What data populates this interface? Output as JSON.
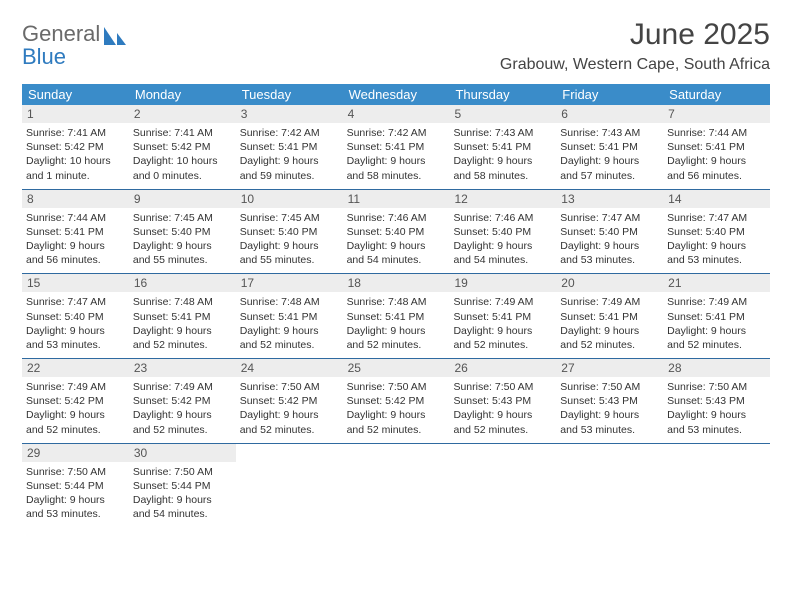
{
  "logo": {
    "general": "General",
    "blue": "Blue"
  },
  "title": "June 2025",
  "subtitle": "Grabouw, Western Cape, South Africa",
  "colors": {
    "header_bg": "#3a8cc9",
    "week_divider": "#2f6aa0",
    "daynum_bg": "#ededed",
    "text": "#333333",
    "logo_gray": "#6a6a6a",
    "logo_blue": "#2f7bbf",
    "page_bg": "#ffffff"
  },
  "weekdays": [
    "Sunday",
    "Monday",
    "Tuesday",
    "Wednesday",
    "Thursday",
    "Friday",
    "Saturday"
  ],
  "weeks": [
    [
      {
        "n": "1",
        "sunrise": "Sunrise: 7:41 AM",
        "sunset": "Sunset: 5:42 PM",
        "daylight": "Daylight: 10 hours and 1 minute."
      },
      {
        "n": "2",
        "sunrise": "Sunrise: 7:41 AM",
        "sunset": "Sunset: 5:42 PM",
        "daylight": "Daylight: 10 hours and 0 minutes."
      },
      {
        "n": "3",
        "sunrise": "Sunrise: 7:42 AM",
        "sunset": "Sunset: 5:41 PM",
        "daylight": "Daylight: 9 hours and 59 minutes."
      },
      {
        "n": "4",
        "sunrise": "Sunrise: 7:42 AM",
        "sunset": "Sunset: 5:41 PM",
        "daylight": "Daylight: 9 hours and 58 minutes."
      },
      {
        "n": "5",
        "sunrise": "Sunrise: 7:43 AM",
        "sunset": "Sunset: 5:41 PM",
        "daylight": "Daylight: 9 hours and 58 minutes."
      },
      {
        "n": "6",
        "sunrise": "Sunrise: 7:43 AM",
        "sunset": "Sunset: 5:41 PM",
        "daylight": "Daylight: 9 hours and 57 minutes."
      },
      {
        "n": "7",
        "sunrise": "Sunrise: 7:44 AM",
        "sunset": "Sunset: 5:41 PM",
        "daylight": "Daylight: 9 hours and 56 minutes."
      }
    ],
    [
      {
        "n": "8",
        "sunrise": "Sunrise: 7:44 AM",
        "sunset": "Sunset: 5:41 PM",
        "daylight": "Daylight: 9 hours and 56 minutes."
      },
      {
        "n": "9",
        "sunrise": "Sunrise: 7:45 AM",
        "sunset": "Sunset: 5:40 PM",
        "daylight": "Daylight: 9 hours and 55 minutes."
      },
      {
        "n": "10",
        "sunrise": "Sunrise: 7:45 AM",
        "sunset": "Sunset: 5:40 PM",
        "daylight": "Daylight: 9 hours and 55 minutes."
      },
      {
        "n": "11",
        "sunrise": "Sunrise: 7:46 AM",
        "sunset": "Sunset: 5:40 PM",
        "daylight": "Daylight: 9 hours and 54 minutes."
      },
      {
        "n": "12",
        "sunrise": "Sunrise: 7:46 AM",
        "sunset": "Sunset: 5:40 PM",
        "daylight": "Daylight: 9 hours and 54 minutes."
      },
      {
        "n": "13",
        "sunrise": "Sunrise: 7:47 AM",
        "sunset": "Sunset: 5:40 PM",
        "daylight": "Daylight: 9 hours and 53 minutes."
      },
      {
        "n": "14",
        "sunrise": "Sunrise: 7:47 AM",
        "sunset": "Sunset: 5:40 PM",
        "daylight": "Daylight: 9 hours and 53 minutes."
      }
    ],
    [
      {
        "n": "15",
        "sunrise": "Sunrise: 7:47 AM",
        "sunset": "Sunset: 5:40 PM",
        "daylight": "Daylight: 9 hours and 53 minutes."
      },
      {
        "n": "16",
        "sunrise": "Sunrise: 7:48 AM",
        "sunset": "Sunset: 5:41 PM",
        "daylight": "Daylight: 9 hours and 52 minutes."
      },
      {
        "n": "17",
        "sunrise": "Sunrise: 7:48 AM",
        "sunset": "Sunset: 5:41 PM",
        "daylight": "Daylight: 9 hours and 52 minutes."
      },
      {
        "n": "18",
        "sunrise": "Sunrise: 7:48 AM",
        "sunset": "Sunset: 5:41 PM",
        "daylight": "Daylight: 9 hours and 52 minutes."
      },
      {
        "n": "19",
        "sunrise": "Sunrise: 7:49 AM",
        "sunset": "Sunset: 5:41 PM",
        "daylight": "Daylight: 9 hours and 52 minutes."
      },
      {
        "n": "20",
        "sunrise": "Sunrise: 7:49 AM",
        "sunset": "Sunset: 5:41 PM",
        "daylight": "Daylight: 9 hours and 52 minutes."
      },
      {
        "n": "21",
        "sunrise": "Sunrise: 7:49 AM",
        "sunset": "Sunset: 5:41 PM",
        "daylight": "Daylight: 9 hours and 52 minutes."
      }
    ],
    [
      {
        "n": "22",
        "sunrise": "Sunrise: 7:49 AM",
        "sunset": "Sunset: 5:42 PM",
        "daylight": "Daylight: 9 hours and 52 minutes."
      },
      {
        "n": "23",
        "sunrise": "Sunrise: 7:49 AM",
        "sunset": "Sunset: 5:42 PM",
        "daylight": "Daylight: 9 hours and 52 minutes."
      },
      {
        "n": "24",
        "sunrise": "Sunrise: 7:50 AM",
        "sunset": "Sunset: 5:42 PM",
        "daylight": "Daylight: 9 hours and 52 minutes."
      },
      {
        "n": "25",
        "sunrise": "Sunrise: 7:50 AM",
        "sunset": "Sunset: 5:42 PM",
        "daylight": "Daylight: 9 hours and 52 minutes."
      },
      {
        "n": "26",
        "sunrise": "Sunrise: 7:50 AM",
        "sunset": "Sunset: 5:43 PM",
        "daylight": "Daylight: 9 hours and 52 minutes."
      },
      {
        "n": "27",
        "sunrise": "Sunrise: 7:50 AM",
        "sunset": "Sunset: 5:43 PM",
        "daylight": "Daylight: 9 hours and 53 minutes."
      },
      {
        "n": "28",
        "sunrise": "Sunrise: 7:50 AM",
        "sunset": "Sunset: 5:43 PM",
        "daylight": "Daylight: 9 hours and 53 minutes."
      }
    ],
    [
      {
        "n": "29",
        "sunrise": "Sunrise: 7:50 AM",
        "sunset": "Sunset: 5:44 PM",
        "daylight": "Daylight: 9 hours and 53 minutes."
      },
      {
        "n": "30",
        "sunrise": "Sunrise: 7:50 AM",
        "sunset": "Sunset: 5:44 PM",
        "daylight": "Daylight: 9 hours and 54 minutes."
      },
      {
        "n": "",
        "sunrise": "",
        "sunset": "",
        "daylight": ""
      },
      {
        "n": "",
        "sunrise": "",
        "sunset": "",
        "daylight": ""
      },
      {
        "n": "",
        "sunrise": "",
        "sunset": "",
        "daylight": ""
      },
      {
        "n": "",
        "sunrise": "",
        "sunset": "",
        "daylight": ""
      },
      {
        "n": "",
        "sunrise": "",
        "sunset": "",
        "daylight": ""
      }
    ]
  ]
}
